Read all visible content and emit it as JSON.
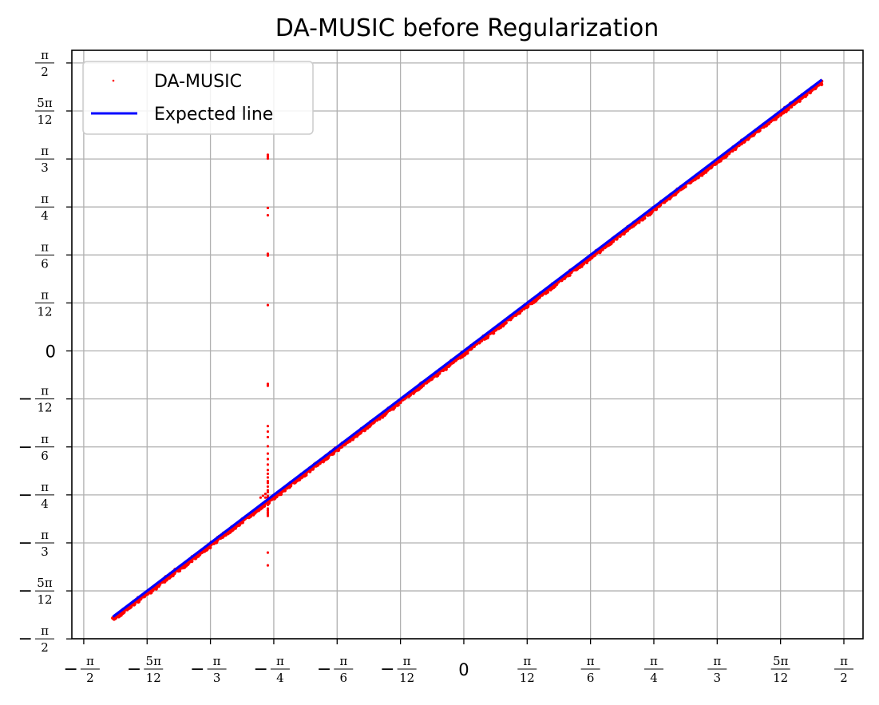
{
  "chart_data": {
    "type": "scatter",
    "title": "DA-MUSIC before Regularization",
    "xlabel": "",
    "ylabel": "",
    "xlim": [
      -1.62,
      1.65
    ],
    "ylim": [
      -1.57,
      1.64
    ],
    "grid": true,
    "legend_position": "top-left",
    "ticks": [
      {
        "value": -1.5708,
        "sign": "−",
        "num": "π",
        "den": "2"
      },
      {
        "value": -1.309,
        "sign": "−",
        "num": "5π",
        "den": "12"
      },
      {
        "value": -1.0472,
        "sign": "−",
        "num": "π",
        "den": "3"
      },
      {
        "value": -0.7854,
        "sign": "−",
        "num": "π",
        "den": "4"
      },
      {
        "value": -0.5236,
        "sign": "−",
        "num": "π",
        "den": "6"
      },
      {
        "value": -0.2618,
        "sign": "−",
        "num": "π",
        "den": "12"
      },
      {
        "value": 0,
        "text": "0"
      },
      {
        "value": 0.2618,
        "sign": "",
        "num": "π",
        "den": "12"
      },
      {
        "value": 0.5236,
        "sign": "",
        "num": "π",
        "den": "6"
      },
      {
        "value": 0.7854,
        "sign": "",
        "num": "π",
        "den": "4"
      },
      {
        "value": 1.0472,
        "sign": "",
        "num": "π",
        "den": "3"
      },
      {
        "value": 1.309,
        "sign": "",
        "num": "5π",
        "den": "12"
      },
      {
        "value": 1.5708,
        "sign": "",
        "num": "π",
        "den": "2"
      }
    ],
    "series": [
      {
        "name": "DA-MUSIC",
        "kind": "scatter",
        "color": "#ff0000",
        "diagonal_range": [
          -1.45,
          1.48
        ],
        "points": [
          [
            -0.81,
            1.07
          ],
          [
            -0.81,
            1.06
          ],
          [
            -0.81,
            1.05
          ],
          [
            -0.81,
            0.78
          ],
          [
            -0.81,
            0.74
          ],
          [
            -0.81,
            0.53
          ],
          [
            -0.81,
            0.52
          ],
          [
            -0.81,
            0.25
          ],
          [
            -0.81,
            -0.18
          ],
          [
            -0.81,
            -0.19
          ],
          [
            -0.81,
            -0.41
          ],
          [
            -0.81,
            -0.44
          ],
          [
            -0.81,
            -0.47
          ],
          [
            -0.81,
            -0.52
          ],
          [
            -0.81,
            -0.56
          ],
          [
            -0.81,
            -0.59
          ],
          [
            -0.81,
            -0.62
          ],
          [
            -0.81,
            -0.65
          ],
          [
            -0.81,
            -0.67
          ],
          [
            -0.81,
            -0.69
          ],
          [
            -0.81,
            -0.71
          ],
          [
            -0.81,
            -0.72
          ],
          [
            -0.81,
            -0.74
          ],
          [
            -0.81,
            -0.76
          ],
          [
            -0.81,
            -0.77
          ],
          [
            -0.81,
            -0.79
          ],
          [
            -0.81,
            -0.8
          ],
          [
            -0.81,
            -0.81
          ],
          [
            -0.81,
            -0.83
          ],
          [
            -0.81,
            -0.84
          ],
          [
            -0.81,
            -0.86
          ],
          [
            -0.81,
            -0.87
          ],
          [
            -0.81,
            -0.88
          ],
          [
            -0.81,
            -0.89
          ],
          [
            -0.81,
            -0.9
          ],
          [
            -0.82,
            -0.78
          ],
          [
            -0.82,
            -0.8
          ],
          [
            -0.82,
            -0.82
          ],
          [
            -0.83,
            -0.79
          ],
          [
            -0.84,
            -0.8
          ],
          [
            -0.81,
            -1.1
          ],
          [
            -0.81,
            -1.17
          ]
        ]
      },
      {
        "name": "Expected line",
        "kind": "line",
        "color": "#0000ff",
        "x": [
          -1.45,
          1.48
        ],
        "y": [
          -1.45,
          1.48
        ]
      }
    ]
  }
}
